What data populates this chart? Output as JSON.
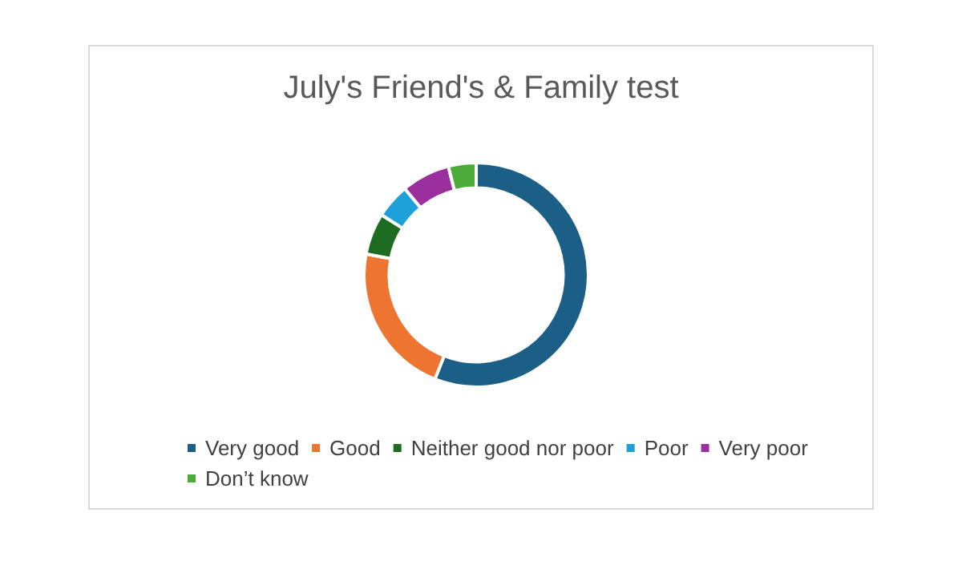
{
  "chart_data": {
    "type": "donut",
    "title": "July's Friend's & Family test",
    "categories": [
      "Very good",
      "Good",
      "Neither good nor poor",
      "Poor",
      "Very poor",
      "Don’t know"
    ],
    "values": [
      56,
      22,
      6,
      5,
      7,
      4
    ],
    "colors": [
      "#1b5e86",
      "#ed7531",
      "#1e6b22",
      "#1ea0d8",
      "#9c2f9e",
      "#4dab3a"
    ],
    "legend": "bottom"
  }
}
